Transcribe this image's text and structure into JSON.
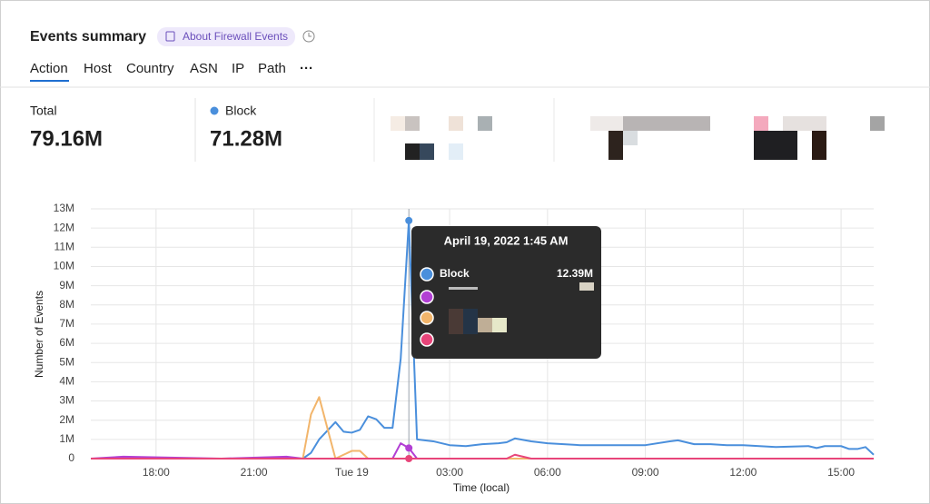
{
  "header": {
    "title": "Events summary",
    "link": "About Firewall Events"
  },
  "tabs": [
    "Action",
    "Host",
    "Country",
    "ASN",
    "IP",
    "Path"
  ],
  "stats": [
    {
      "label": "Total",
      "value": "79.16M"
    },
    {
      "label": "Block",
      "value": "71.28M"
    }
  ],
  "tooltip": {
    "title": "April 19, 2022 1:45 AM",
    "value_label": "12.39M"
  },
  "chart_data": {
    "type": "line",
    "x_label": "Time (local)",
    "y_label": "Number of Events",
    "x": [
      16,
      17,
      20,
      22,
      22.5,
      22.75,
      23,
      23.5,
      23.75,
      24,
      24.25,
      24.5,
      24.75,
      25,
      25.25,
      25.5,
      25.75,
      26,
      26.5,
      27,
      27.5,
      28,
      28.5,
      28.75,
      29,
      29.5,
      30,
      31,
      32,
      33,
      33.75,
      34,
      34.5,
      35,
      35.5,
      36,
      37,
      38,
      38.25,
      38.5,
      39,
      39.25,
      39.5,
      39.75,
      40
    ],
    "series": [
      {
        "name": "Block",
        "color": "#4a8fdc",
        "values": [
          0,
          0,
          0,
          0,
          0,
          0.3,
          1.0,
          1.9,
          1.4,
          1.35,
          1.5,
          2.2,
          2.05,
          1.6,
          1.6,
          5.2,
          12.39,
          1.0,
          0.9,
          0.7,
          0.65,
          0.75,
          0.8,
          0.85,
          1.05,
          0.9,
          0.8,
          0.7,
          0.7,
          0.7,
          0.9,
          0.95,
          0.75,
          0.75,
          0.7,
          0.7,
          0.6,
          0.65,
          0.55,
          0.65,
          0.65,
          0.5,
          0.5,
          0.6,
          0.2
        ]
      },
      {
        "color": "#b23fd4",
        "values": [
          0,
          0.1,
          0,
          0.1,
          0,
          0,
          0,
          0,
          0,
          0,
          0,
          0,
          0,
          0,
          0,
          0.8,
          0.55,
          0,
          0,
          0,
          0,
          0,
          0,
          0,
          0,
          0,
          0,
          0,
          0,
          0,
          0,
          0,
          0,
          0,
          0,
          0,
          0,
          0,
          0,
          0,
          0,
          0,
          0,
          0,
          0
        ]
      },
      {
        "color": "#f2b56b",
        "values": [
          0,
          0,
          0,
          0,
          0,
          2.3,
          3.2,
          0,
          0.2,
          0.4,
          0.4,
          0,
          0,
          0,
          0,
          0,
          0,
          0,
          0,
          0,
          0,
          0,
          0,
          0,
          0,
          0,
          0,
          0,
          0,
          0,
          0,
          0,
          0,
          0,
          0,
          0,
          0,
          0,
          0,
          0,
          0,
          0,
          0,
          0,
          0
        ]
      },
      {
        "color": "#e8457a",
        "values": [
          0,
          0,
          0,
          0,
          0,
          0,
          0,
          0,
          0,
          0,
          0,
          0,
          0,
          0,
          0,
          0,
          0,
          0,
          0,
          0,
          0,
          0,
          0,
          0,
          0.2,
          0,
          0,
          0,
          0,
          0,
          0,
          0,
          0,
          0,
          0,
          0,
          0,
          0,
          0,
          0,
          0,
          0,
          0,
          0,
          0
        ]
      }
    ],
    "xlim": [
      16,
      40
    ],
    "xticks": [
      {
        "value": 18,
        "label": "18:00"
      },
      {
        "value": 21,
        "label": "21:00"
      },
      {
        "value": 24,
        "label": "Tue 19"
      },
      {
        "value": 27,
        "label": "03:00"
      },
      {
        "value": 30,
        "label": "06:00"
      },
      {
        "value": 33,
        "label": "09:00"
      },
      {
        "value": 36,
        "label": "12:00"
      },
      {
        "value": 39,
        "label": "15:00"
      }
    ],
    "ylim": [
      0,
      13
    ],
    "yticks": [
      0,
      {
        "value": 1,
        "label": "1M"
      },
      {
        "value": 2,
        "label": "2M"
      },
      {
        "value": 3,
        "label": "3M"
      },
      {
        "value": 4,
        "label": "4M"
      },
      {
        "value": 5,
        "label": "5M"
      },
      {
        "value": 6,
        "label": "6M"
      },
      {
        "value": 7,
        "label": "7M"
      },
      {
        "value": 8,
        "label": "8M"
      },
      {
        "value": 9,
        "label": "9M"
      },
      {
        "value": 10,
        "label": "10M"
      },
      {
        "value": 11,
        "label": "11M"
      },
      {
        "value": 12,
        "label": "12M"
      },
      {
        "value": 13,
        "label": "13M"
      }
    ],
    "grid": true
  }
}
